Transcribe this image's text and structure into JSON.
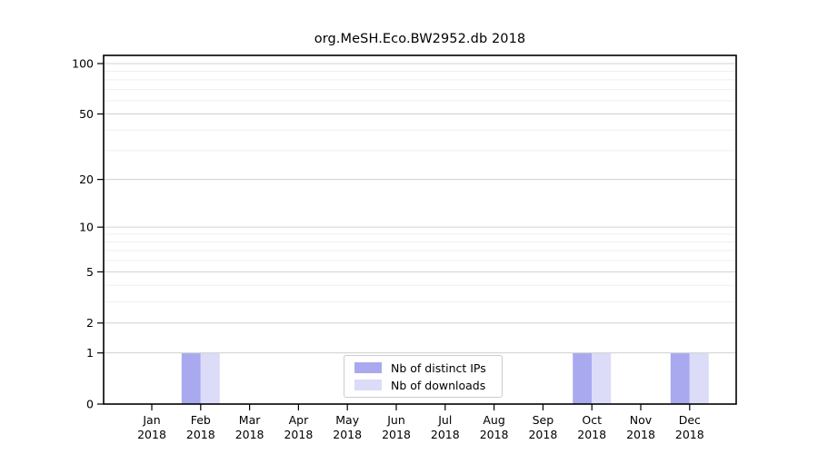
{
  "figure": {
    "title": "org.MeSH.Eco.BW2952.db 2018"
  },
  "chart_data": {
    "type": "bar",
    "title": "org.MeSH.Eco.BW2952.db 2018",
    "categories": [
      "Jan 2018",
      "Feb 2018",
      "Mar 2018",
      "Apr 2018",
      "May 2018",
      "Jun 2018",
      "Jul 2018",
      "Aug 2018",
      "Sep 2018",
      "Oct 2018",
      "Nov 2018",
      "Dec 2018"
    ],
    "x_tick_months": [
      "Jan",
      "Feb",
      "Mar",
      "Apr",
      "May",
      "Jun",
      "Jul",
      "Aug",
      "Sep",
      "Oct",
      "Nov",
      "Dec"
    ],
    "x_tick_year": "2018",
    "series": [
      {
        "name": "Nb of distinct IPs",
        "color": "#a9a9f0",
        "values": [
          0,
          1,
          0,
          0,
          0,
          0,
          0,
          0,
          0,
          1,
          0,
          1
        ]
      },
      {
        "name": "Nb of downloads",
        "color": "#dcdcf8",
        "values": [
          0,
          1,
          0,
          0,
          0,
          0,
          0,
          0,
          0,
          1,
          0,
          1
        ]
      }
    ],
    "y_scale": "log1p",
    "y_ticks": [
      0,
      1,
      2,
      5,
      10,
      20,
      50,
      100
    ],
    "y_minor_gridlines": [
      3,
      4,
      6,
      7,
      8,
      9,
      30,
      40,
      60,
      70,
      80,
      90
    ],
    "ylim": [
      0,
      112
    ],
    "xlabel": "",
    "ylabel": "",
    "grid": "horizontal",
    "legend_position": "bottom-center",
    "colors": {
      "axis": "#000000",
      "major_grid": "#d0d0d0",
      "minor_grid": "#efefef",
      "text": "#000000"
    }
  }
}
